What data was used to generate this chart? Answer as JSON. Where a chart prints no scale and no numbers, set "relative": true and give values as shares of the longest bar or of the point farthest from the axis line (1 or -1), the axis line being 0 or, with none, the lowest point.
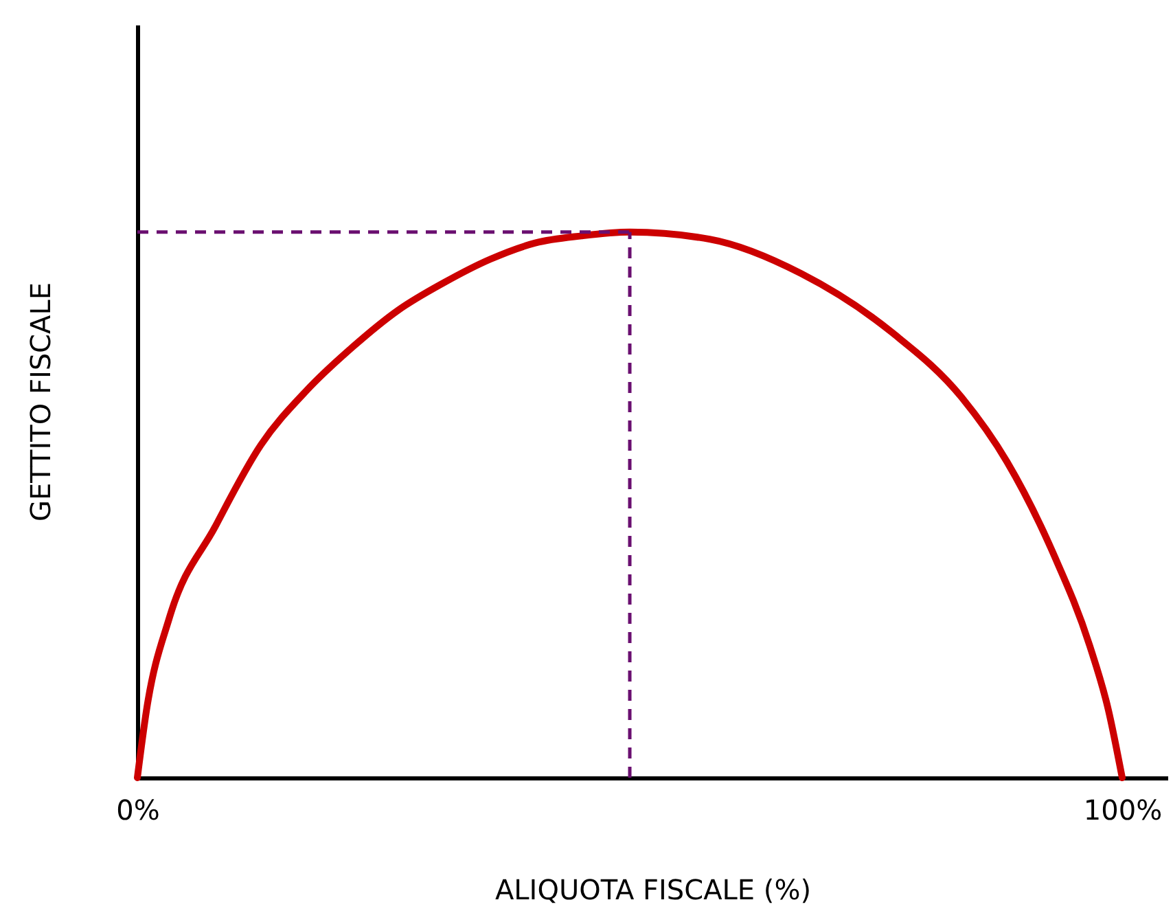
{
  "chart_data": {
    "type": "line",
    "relative": true,
    "xlabel": "ALIQUOTA FISCALE (%)",
    "ylabel": "GETTITO FISCALE",
    "x": [
      0,
      0.93,
      3.25,
      7.9,
      12.55,
      17.2,
      21.9,
      26.5,
      31.1,
      35.8,
      40.4,
      45.1,
      50,
      58.1,
      67.4,
      76.7,
      83.7,
      88.3,
      93.0,
      96.7,
      98.6,
      100
    ],
    "series": [
      {
        "color": "#cc0000",
        "values": [
          0,
          0.124,
          0.293,
          0.46,
          0.61,
          0.71,
          0.79,
          0.857,
          0.907,
          0.95,
          0.98,
          0.993,
          1,
          0.987,
          0.924,
          0.815,
          0.697,
          0.579,
          0.411,
          0.242,
          0.124,
          0
        ]
      }
    ],
    "xlim": [
      0,
      104.6
    ],
    "xticks": [
      {
        "value": 0,
        "label": "0%"
      },
      {
        "value": 100,
        "label": "100%"
      }
    ],
    "ref_lines": [
      {
        "axis": "x",
        "value": 50,
        "color": "#6a0f70",
        "line_style": "dashed"
      },
      {
        "axis": "y",
        "value": 1,
        "color": "#6a0f70",
        "line_style": "dashed"
      }
    ],
    "marker": "none",
    "line_style": "solid"
  }
}
